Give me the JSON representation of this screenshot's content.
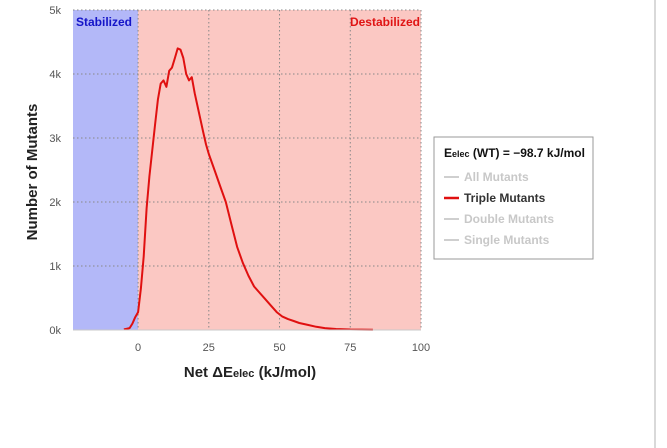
{
  "chart_data": {
    "type": "line",
    "xlabel": "Net ΔE",
    "xlabel_sub": "elec",
    "xlabel_unit": " (kJ/mol)",
    "ylabel": "Number of Mutants",
    "xlim": [
      -23,
      100
    ],
    "ylim": [
      0,
      5000
    ],
    "x_ticks": [
      0,
      25,
      50,
      75,
      100
    ],
    "y_ticks": [
      0,
      1000,
      2000,
      3000,
      4000,
      5000
    ],
    "y_tick_labels": [
      "0k",
      "1k",
      "2k",
      "3k",
      "4k",
      "5k"
    ],
    "grid": true,
    "regions": [
      {
        "label": "Stabilized",
        "from": -23,
        "to": 0,
        "color": "#b3b8f8",
        "text_color": "#1414c8"
      },
      {
        "label": "Destabilized",
        "from": 0,
        "to": 100,
        "color": "#fbc8c3",
        "text_color": "#e01414"
      }
    ],
    "legend": {
      "position": "right",
      "title_main": "E",
      "title_sub": "elec",
      "title_rest": " (WT) = −98.7 kJ/mol",
      "items": [
        {
          "label": "All Mutants",
          "color": "#cfcfcf",
          "active": false
        },
        {
          "label": "Triple Mutants",
          "color": "#e01010",
          "active": true
        },
        {
          "label": "Double Mutants",
          "color": "#cfcfcf",
          "active": false
        },
        {
          "label": "Single Mutants",
          "color": "#cfcfcf",
          "active": false
        }
      ]
    },
    "series": [
      {
        "name": "Triple Mutants",
        "color": "#e01010",
        "x": [
          -5,
          -3,
          -2,
          -1,
          0,
          1,
          2,
          3,
          4,
          5,
          6,
          7,
          8,
          9,
          10,
          11,
          12,
          13,
          14,
          15,
          16,
          17,
          18,
          19,
          20,
          21,
          22,
          23,
          24,
          25,
          27,
          29,
          31,
          33,
          35,
          37,
          39,
          41,
          43,
          45,
          47,
          49,
          51,
          53,
          55,
          57,
          60,
          63,
          66,
          70,
          75,
          83
        ],
        "y": [
          10,
          30,
          100,
          200,
          280,
          650,
          1150,
          1900,
          2400,
          2800,
          3200,
          3600,
          3850,
          3900,
          3800,
          4050,
          4100,
          4250,
          4400,
          4380,
          4250,
          4000,
          3900,
          3950,
          3700,
          3500,
          3300,
          3100,
          2900,
          2750,
          2500,
          2250,
          2000,
          1650,
          1300,
          1050,
          850,
          680,
          580,
          480,
          380,
          280,
          210,
          170,
          140,
          110,
          80,
          50,
          30,
          15,
          8,
          5
        ]
      }
    ]
  }
}
